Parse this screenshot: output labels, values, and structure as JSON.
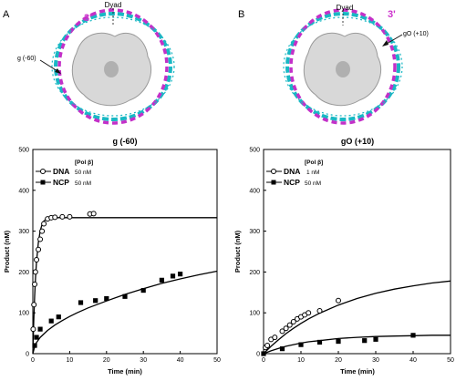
{
  "figure": {
    "panels": [
      {
        "letter": "A",
        "illustration": {
          "dyad_label": "Dyad",
          "end_label": "3'",
          "site_label": "g (-60)"
        }
      },
      {
        "letter": "B",
        "illustration": {
          "dyad_label": "Dyad",
          "end_label": "3'",
          "site_label": "gO (+10)"
        }
      }
    ],
    "colors": {
      "dna_cyan": "#19b8c4",
      "dna_magenta": "#c330c8",
      "histone": "#d8d8d8",
      "label_magenta": "#cc33cc"
    }
  },
  "chart_data": [
    {
      "type": "scatter",
      "title": "g (-60)",
      "xlabel": "Time (min)",
      "ylabel": "Product (nM)",
      "xlim": [
        0,
        50
      ],
      "ylim": [
        0,
        500
      ],
      "xticks": [
        0,
        10,
        20,
        30,
        40,
        50
      ],
      "yticks": [
        0,
        100,
        200,
        300,
        400,
        500
      ],
      "legend": {
        "header": "[Pol β]",
        "placement": "top-left",
        "entries": [
          {
            "name": "DNA",
            "conc": "50 nM",
            "marker": "open-circle"
          },
          {
            "name": "NCP",
            "conc": "50 nM",
            "marker": "filled-square"
          }
        ]
      },
      "series": [
        {
          "name": "DNA",
          "marker": "open-circle",
          "points": [
            [
              0.1,
              60
            ],
            [
              0.3,
              120
            ],
            [
              0.5,
              170
            ],
            [
              0.7,
              200
            ],
            [
              1.0,
              230
            ],
            [
              1.5,
              255
            ],
            [
              2,
              280
            ],
            [
              2.5,
              300
            ],
            [
              3,
              318
            ],
            [
              4,
              330
            ],
            [
              5,
              333
            ],
            [
              6,
              334
            ],
            [
              8,
              335
            ],
            [
              10,
              335
            ],
            [
              15.5,
              342
            ],
            [
              16.5,
              343
            ]
          ],
          "fit": [
            [
              0,
              0
            ],
            [
              0.25,
              79
            ],
            [
              0.5,
              141
            ],
            [
              0.75,
              188
            ],
            [
              1,
              224
            ],
            [
              1.5,
              273
            ],
            [
              2,
              301
            ],
            [
              2.5,
              316
            ],
            [
              3,
              325
            ],
            [
              4,
              331
            ],
            [
              5,
              333
            ],
            [
              6,
              333
            ],
            [
              8,
              333
            ],
            [
              10,
              333
            ],
            [
              20,
              333
            ],
            [
              30,
              333
            ],
            [
              40,
              333
            ],
            [
              50,
              333
            ]
          ]
        },
        {
          "name": "NCP",
          "marker": "filled-square",
          "points": [
            [
              0.5,
              20
            ],
            [
              1,
              40
            ],
            [
              2,
              60
            ],
            [
              5,
              80
            ],
            [
              7,
              90
            ],
            [
              13,
              125
            ],
            [
              17,
              130
            ],
            [
              20,
              135
            ],
            [
              25,
              140
            ],
            [
              30,
              155
            ],
            [
              35,
              180
            ],
            [
              38,
              190
            ],
            [
              40,
              195
            ]
          ],
          "fit": [
            [
              0,
              0
            ],
            [
              0.5,
              17
            ],
            [
              1,
              27
            ],
            [
              2,
              40
            ],
            [
              4,
              57
            ],
            [
              6,
              70
            ],
            [
              8,
              81
            ],
            [
              10,
              91
            ],
            [
              12,
              100
            ],
            [
              15,
              112
            ],
            [
              20,
              129
            ],
            [
              25,
              145
            ],
            [
              30,
              159
            ],
            [
              35,
              172
            ],
            [
              40,
              183
            ],
            [
              45,
              193
            ],
            [
              50,
              202
            ]
          ]
        }
      ]
    },
    {
      "type": "scatter",
      "title": "gO (+10)",
      "xlabel": "Time (min)",
      "ylabel": "Product (nM)",
      "xlim": [
        0,
        50
      ],
      "ylim": [
        0,
        500
      ],
      "xticks": [
        0,
        10,
        20,
        30,
        40,
        50
      ],
      "yticks": [
        0,
        100,
        200,
        300,
        400,
        500
      ],
      "legend": {
        "header": "[Pol β]",
        "placement": "top-left",
        "entries": [
          {
            "name": "DNA",
            "conc": "1 nM",
            "marker": "open-circle"
          },
          {
            "name": "NCP",
            "conc": "50 nM",
            "marker": "filled-square"
          }
        ]
      },
      "series": [
        {
          "name": "DNA",
          "marker": "open-circle",
          "points": [
            [
              0.5,
              15
            ],
            [
              1,
              20
            ],
            [
              2,
              35
            ],
            [
              3,
              40
            ],
            [
              5,
              55
            ],
            [
              6,
              62
            ],
            [
              7,
              70
            ],
            [
              8,
              78
            ],
            [
              9,
              85
            ],
            [
              10,
              90
            ],
            [
              11,
              95
            ],
            [
              12,
              100
            ],
            [
              15,
              105
            ],
            [
              20,
              130
            ]
          ],
          "fit": [
            [
              0,
              0
            ],
            [
              2,
              18
            ],
            [
              4,
              34
            ],
            [
              6,
              49
            ],
            [
              8,
              62
            ],
            [
              10,
              74
            ],
            [
              12,
              85
            ],
            [
              15,
              99
            ],
            [
              20,
              119
            ],
            [
              25,
              135
            ],
            [
              30,
              148
            ],
            [
              35,
              158
            ],
            [
              40,
              166
            ],
            [
              45,
              173
            ],
            [
              50,
              178
            ]
          ]
        },
        {
          "name": "NCP",
          "marker": "filled-square",
          "points": [
            [
              0,
              0
            ],
            [
              5,
              12
            ],
            [
              10,
              22
            ],
            [
              15,
              28
            ],
            [
              20,
              30
            ],
            [
              27,
              32
            ],
            [
              30,
              35
            ],
            [
              40,
              45
            ]
          ],
          "fit": [
            [
              0,
              0
            ],
            [
              2,
              7
            ],
            [
              4,
              13
            ],
            [
              6,
              18
            ],
            [
              8,
              22
            ],
            [
              10,
              26
            ],
            [
              12,
              29
            ],
            [
              15,
              32
            ],
            [
              20,
              37
            ],
            [
              25,
              40
            ],
            [
              30,
              42
            ],
            [
              35,
              43
            ],
            [
              40,
              44
            ],
            [
              45,
              45
            ],
            [
              50,
              45
            ]
          ]
        }
      ]
    }
  ]
}
